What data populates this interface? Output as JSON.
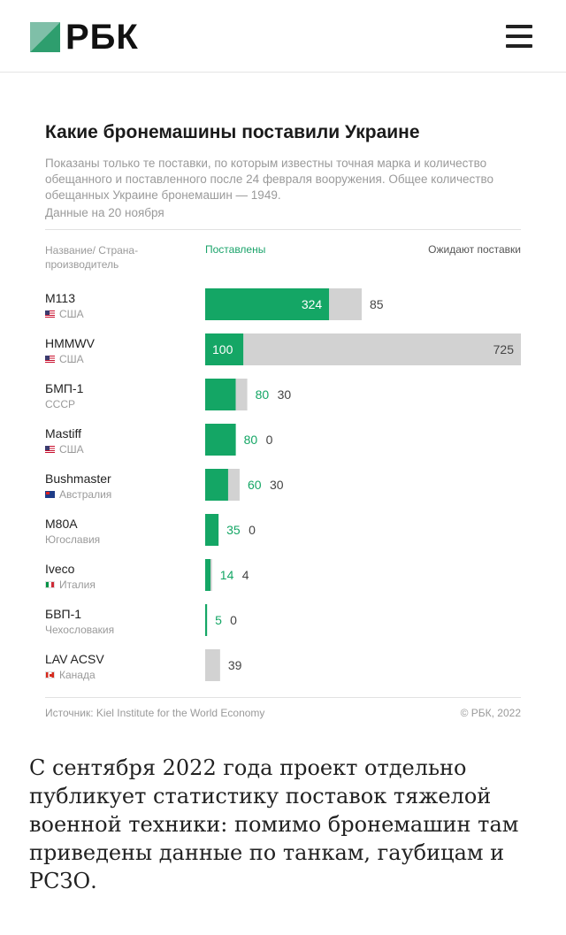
{
  "header": {
    "logo_text": "РБК",
    "brand_colors": {
      "green": "#2e9e6e",
      "teal": "#7fbfa8",
      "dark": "#111111"
    }
  },
  "chart_data": {
    "type": "bar",
    "title": "Какие бронемашины поставили Украине",
    "subtitle": "Показаны только те поставки, по которым известны точная марка и количество обещанного и поставленного после 24 февраля вооружения. Общее количество обещанных Украине бронемашин — 1949.",
    "date_note": "Данные на 20 ноября",
    "column_headers": {
      "name": "Название/ Страна-производитель",
      "delivered": "Поставлены",
      "pending": "Ожидают поставки"
    },
    "colors": {
      "delivered": "#14a665",
      "pending": "#d2d2d2",
      "delivered_text_outside": "#14a665",
      "pending_text": "#444444"
    },
    "x_max": 825,
    "categories": [
      {
        "name": "M113",
        "country": "США",
        "flag": "us",
        "delivered": 324,
        "pending": 85
      },
      {
        "name": "HMMWV",
        "country": "США",
        "flag": "us",
        "delivered": 100,
        "pending": 725
      },
      {
        "name": "БМП-1",
        "country": "СССР",
        "flag": "",
        "delivered": 80,
        "pending": 30
      },
      {
        "name": "Mastiff",
        "country": "США",
        "flag": "us",
        "delivered": 80,
        "pending": 0
      },
      {
        "name": "Bushmaster",
        "country": "Австралия",
        "flag": "au",
        "delivered": 60,
        "pending": 30
      },
      {
        "name": "M80A",
        "country": "Югославия",
        "flag": "",
        "delivered": 35,
        "pending": 0
      },
      {
        "name": "Iveco",
        "country": "Италия",
        "flag": "it",
        "delivered": 14,
        "pending": 4
      },
      {
        "name": "БВП-1",
        "country": "Чехословакия",
        "flag": "",
        "delivered": 5,
        "pending": 0
      },
      {
        "name": "LAV ACSV",
        "country": "Канада",
        "flag": "ca",
        "delivered": 0,
        "pending": 39
      }
    ],
    "series": [
      {
        "name": "Поставлены"
      },
      {
        "name": "Ожидают поставки"
      }
    ],
    "source": "Источник: Kiel Institute for the World Economy",
    "copyright": "© РБК, 2022"
  },
  "article": {
    "paragraph": "С сентября 2022 года проект отдельно публикует статистику поставок тяжелой военной техники: помимо бронемашин там приведены данные по танкам, гаубицам и РСЗО."
  }
}
